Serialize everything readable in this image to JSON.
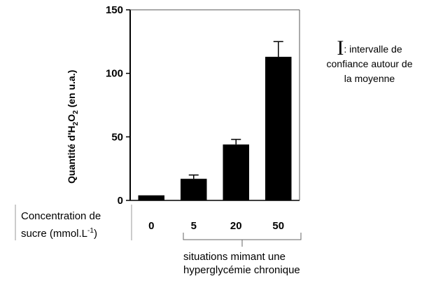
{
  "chart_data": {
    "type": "bar",
    "categories": [
      "0",
      "5",
      "20",
      "50"
    ],
    "values": [
      4,
      17,
      44,
      113
    ],
    "error_upper": [
      4,
      20,
      48,
      125
    ],
    "ylim": [
      0,
      150
    ],
    "yticks": [
      "0",
      "50",
      "100",
      "150"
    ],
    "ylabel_parts": [
      "Quantité d'H",
      "2",
      "O",
      "2",
      " (en u.a.)"
    ],
    "grid": false,
    "bar_color": "#000000"
  },
  "legend": {
    "symbol": "I",
    "text_line1": ": intervalle de",
    "text_line2": "confiance autour de",
    "text_line3": "la moyenne"
  },
  "xaxis_label": {
    "line1": "Concentration de",
    "line2_prefix": "sucre (mmol.L",
    "line2_exp": "-1",
    "line2_suffix": ")"
  },
  "annotation": {
    "line1": "situations mimant une",
    "line2": "hyperglycémie chronique"
  }
}
